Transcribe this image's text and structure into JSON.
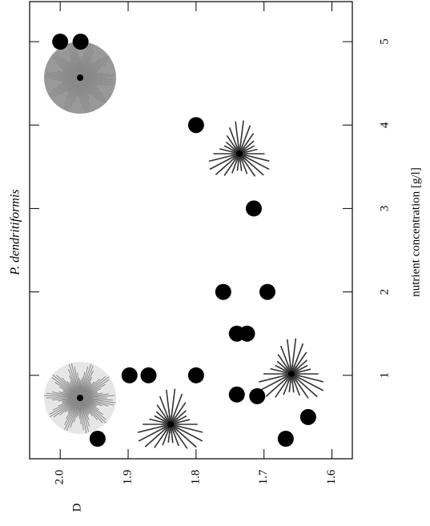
{
  "chart_data": {
    "type": "scatter",
    "title": "P. dendritiformis",
    "x_label": "nutrient concentration [g/l]",
    "y_label": "D",
    "x": [
      5,
      5,
      4,
      3,
      2,
      2,
      1.5,
      1.5,
      1,
      1,
      1,
      0.77,
      0.75,
      0.5,
      0.24,
      0.24
    ],
    "series": [
      {
        "color": "#000000",
        "values": [
          2.0,
          1.97,
          1.8,
          1.715,
          1.76,
          1.695,
          1.74,
          1.725,
          1.898,
          1.87,
          1.8,
          1.74,
          1.71,
          1.635,
          1.668,
          1.945
        ]
      }
    ],
    "xlim": [
      0,
      5.48
    ],
    "xticks": [
      1,
      2,
      3,
      4,
      5
    ],
    "ylim": [
      1.57,
      2.045
    ],
    "yticks": [
      1.6,
      1.7,
      1.8,
      1.9,
      {
        "value": 2,
        "label": "2.0"
      }
    ],
    "y_reversed": true
  }
}
